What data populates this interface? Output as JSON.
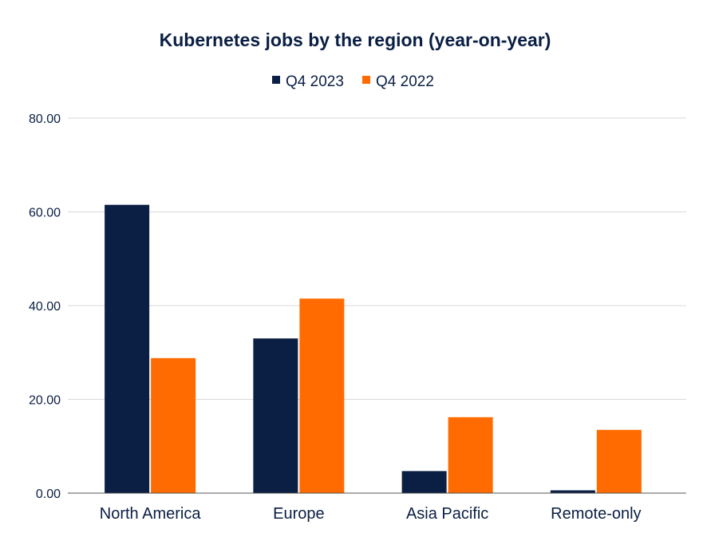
{
  "chart_data": {
    "type": "bar",
    "title": "Kubernetes jobs by the region (year-on-year)",
    "categories": [
      "North America",
      "Europe",
      "Asia Pacific",
      "Remote-only"
    ],
    "series": [
      {
        "name": "Q4 2023",
        "color": "#0b1f44",
        "values": [
          61.5,
          33.0,
          4.7,
          0.6
        ]
      },
      {
        "name": "Q4 2022",
        "color": "#ff6b00",
        "values": [
          28.8,
          41.5,
          16.2,
          13.5
        ]
      }
    ],
    "ylim": [
      0,
      80
    ],
    "yticks": [
      "0.00",
      "20.00",
      "40.00",
      "60.00",
      "80.00"
    ],
    "grid": true,
    "legend": "top-center"
  }
}
